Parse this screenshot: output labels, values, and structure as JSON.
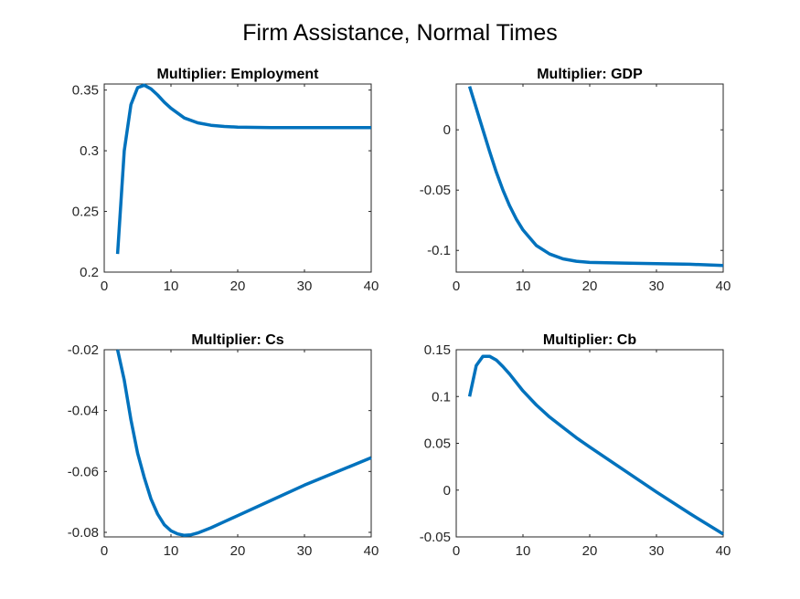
{
  "figure_title": "Firm Assistance, Normal Times",
  "line_color": "#0072BD",
  "chart_data": [
    {
      "type": "line",
      "title": "Multiplier: Employment",
      "xlim": [
        0,
        40
      ],
      "ylim": [
        0.2,
        0.355
      ],
      "xticks": [
        0,
        10,
        20,
        30,
        40
      ],
      "yticks": [
        0.2,
        0.25,
        0.3,
        0.35
      ],
      "ytick_labels": [
        "0.2",
        "0.25",
        "0.3",
        "0.35"
      ],
      "x": [
        2,
        3,
        4,
        5,
        6,
        7,
        8,
        9,
        10,
        12,
        14,
        16,
        18,
        20,
        25,
        30,
        35,
        40
      ],
      "y": [
        0.215,
        0.3,
        0.338,
        0.352,
        0.354,
        0.351,
        0.346,
        0.34,
        0.335,
        0.327,
        0.323,
        0.321,
        0.32,
        0.3195,
        0.319,
        0.319,
        0.319,
        0.319
      ]
    },
    {
      "type": "line",
      "title": "Multiplier: GDP",
      "xlim": [
        0,
        40
      ],
      "ylim": [
        -0.118,
        0.038
      ],
      "xticks": [
        0,
        10,
        20,
        30,
        40
      ],
      "yticks": [
        -0.1,
        -0.05,
        0
      ],
      "ytick_labels": [
        "-0.1",
        "-0.05",
        "0"
      ],
      "x": [
        2,
        3,
        4,
        5,
        6,
        7,
        8,
        9,
        10,
        12,
        14,
        16,
        18,
        20,
        25,
        30,
        35,
        40
      ],
      "y": [
        0.036,
        0.018,
        0.0,
        -0.018,
        -0.035,
        -0.05,
        -0.063,
        -0.074,
        -0.083,
        -0.096,
        -0.103,
        -0.107,
        -0.109,
        -0.11,
        -0.1105,
        -0.111,
        -0.1115,
        -0.1125
      ]
    },
    {
      "type": "line",
      "title": "Multiplier: Cs",
      "xlim": [
        0,
        40
      ],
      "ylim": [
        -0.0815,
        -0.02
      ],
      "xticks": [
        0,
        10,
        20,
        30,
        40
      ],
      "yticks": [
        -0.08,
        -0.06,
        -0.04,
        -0.02
      ],
      "ytick_labels": [
        "-0.08",
        "-0.06",
        "-0.04",
        "-0.02"
      ],
      "x": [
        2,
        3,
        4,
        5,
        6,
        7,
        8,
        9,
        10,
        11,
        12,
        13,
        14,
        16,
        18,
        20,
        25,
        30,
        35,
        40
      ],
      "y": [
        -0.02,
        -0.03,
        -0.043,
        -0.054,
        -0.062,
        -0.069,
        -0.074,
        -0.0775,
        -0.0795,
        -0.0805,
        -0.081,
        -0.0808,
        -0.0802,
        -0.0785,
        -0.0765,
        -0.0745,
        -0.0695,
        -0.0645,
        -0.06,
        -0.0555
      ]
    },
    {
      "type": "line",
      "title": "Multiplier: Cb",
      "xlim": [
        0,
        40
      ],
      "ylim": [
        -0.05,
        0.15
      ],
      "xticks": [
        0,
        10,
        20,
        30,
        40
      ],
      "yticks": [
        -0.05,
        0,
        0.05,
        0.1,
        0.15
      ],
      "ytick_labels": [
        "-0.05",
        "0",
        "0.05",
        "0.1",
        "0.15"
      ],
      "x": [
        2,
        3,
        4,
        5,
        6,
        7,
        8,
        10,
        12,
        14,
        16,
        18,
        20,
        25,
        30,
        35,
        40
      ],
      "y": [
        0.1,
        0.133,
        0.143,
        0.143,
        0.139,
        0.132,
        0.124,
        0.106,
        0.091,
        0.078,
        0.067,
        0.056,
        0.046,
        0.022,
        -0.002,
        -0.025,
        -0.047
      ]
    }
  ]
}
